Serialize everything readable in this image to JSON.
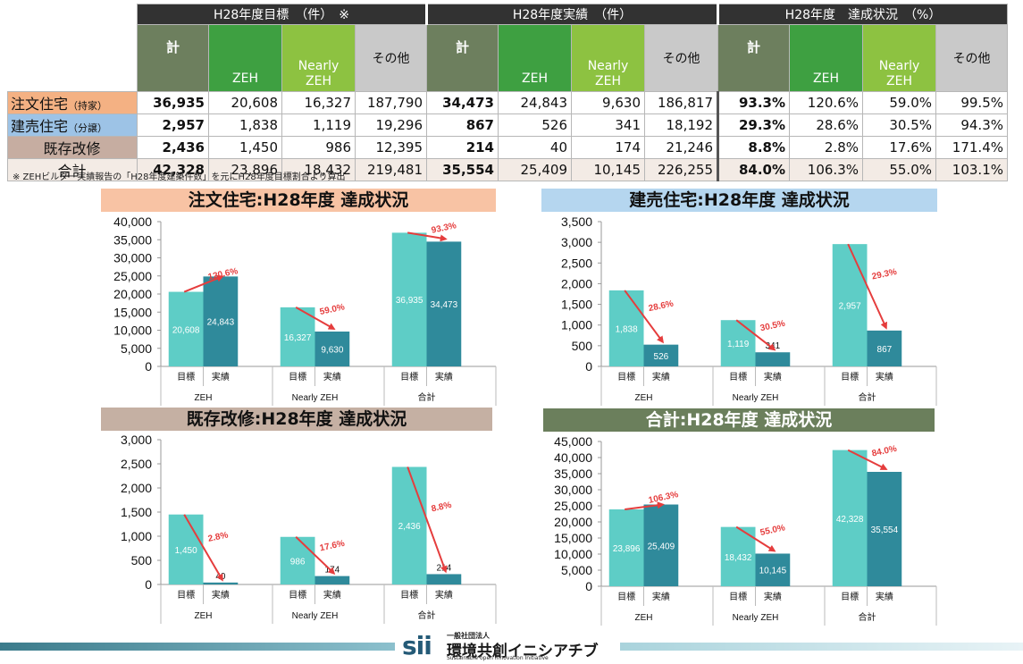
{
  "table": {
    "groups": [
      "H28年度目標　（件）　※",
      "H28年度実績　（件）",
      "H28年度　達成状況　（%）"
    ],
    "cols": [
      "計",
      "ZEH",
      "Nearly ZEH",
      "その他"
    ],
    "rows": [
      {
        "label": "注文住宅",
        "sub": "（持家）",
        "target": [
          "36,935",
          "20,608",
          "16,327",
          "187,790"
        ],
        "actual": [
          "34,473",
          "24,843",
          "9,630",
          "186,817"
        ],
        "rate": [
          "93.3%",
          "120.6%",
          "59.0%",
          "99.5%"
        ]
      },
      {
        "label": "建売住宅",
        "sub": "（分譲）",
        "target": [
          "2,957",
          "1,838",
          "1,119",
          "19,296"
        ],
        "actual": [
          "867",
          "526",
          "341",
          "18,192"
        ],
        "rate": [
          "29.3%",
          "28.6%",
          "30.5%",
          "94.3%"
        ]
      },
      {
        "label": "既存改修",
        "sub": "",
        "target": [
          "2,436",
          "1,450",
          "986",
          "12,395"
        ],
        "actual": [
          "214",
          "40",
          "174",
          "21,246"
        ],
        "rate": [
          "8.8%",
          "2.8%",
          "17.6%",
          "171.4%"
        ]
      },
      {
        "label": "合計",
        "sub": "",
        "target": [
          "42,328",
          "23,896",
          "18,432",
          "219,481"
        ],
        "actual": [
          "35,554",
          "25,409",
          "10,145",
          "226,255"
        ],
        "rate": [
          "84.0%",
          "106.3%",
          "55.0%",
          "103.1%"
        ]
      }
    ],
    "note": "※ ZEHビルダー実績報告の「H28年度建築件数」を元にH28年度目標割合より算出"
  },
  "colors": {
    "target_bar": "#5ecdc6",
    "actual_bar": "#2f8a9b",
    "arrow": "#e53d3d",
    "title_order": "#f8c3a4",
    "title_built": "#b5d6ef",
    "title_renov": "#c5b0a3",
    "title_total": "#6b7f5c"
  },
  "footer": {
    "logo": "sii",
    "org_small": "一般社団法人",
    "org_name": "環境共創イニシアチブ",
    "org_en": "Sustainable open Innovation Initiative"
  },
  "chart_data": [
    {
      "type": "bar",
      "title": "注文住宅:H28年度 達成状況",
      "categories": [
        "ZEH",
        "Nearly ZEH",
        "合計"
      ],
      "sub_categories": [
        "目標",
        "実績"
      ],
      "series": [
        {
          "name": "目標",
          "values": [
            20608,
            16327,
            36935
          ]
        },
        {
          "name": "実績",
          "values": [
            24843,
            9630,
            34473
          ]
        }
      ],
      "rates": [
        "120.6%",
        "59.0%",
        "93.3%"
      ],
      "ylim": [
        0,
        40000
      ],
      "ytick_step": 5000,
      "grid": false
    },
    {
      "type": "bar",
      "title": "建売住宅:H28年度 達成状況",
      "categories": [
        "ZEH",
        "Nearly ZEH",
        "合計"
      ],
      "sub_categories": [
        "目標",
        "実績"
      ],
      "series": [
        {
          "name": "目標",
          "values": [
            1838,
            1119,
            2957
          ]
        },
        {
          "name": "実績",
          "values": [
            526,
            341,
            867
          ]
        }
      ],
      "rates": [
        "28.6%",
        "30.5%",
        "29.3%"
      ],
      "ylim": [
        0,
        3500
      ],
      "ytick_step": 500,
      "grid": false
    },
    {
      "type": "bar",
      "title": "既存改修:H28年度 達成状況",
      "categories": [
        "ZEH",
        "Nearly ZEH",
        "合計"
      ],
      "sub_categories": [
        "目標",
        "実績"
      ],
      "series": [
        {
          "name": "目標",
          "values": [
            1450,
            986,
            2436
          ]
        },
        {
          "name": "実績",
          "values": [
            40,
            174,
            214
          ]
        }
      ],
      "rates": [
        "2.8%",
        "17.6%",
        "8.8%"
      ],
      "ylim": [
        0,
        3000
      ],
      "ytick_step": 500,
      "grid": false
    },
    {
      "type": "bar",
      "title": "合計:H28年度 達成状況",
      "categories": [
        "ZEH",
        "Nearly ZEH",
        "合計"
      ],
      "sub_categories": [
        "目標",
        "実績"
      ],
      "series": [
        {
          "name": "目標",
          "values": [
            23896,
            18432,
            42328
          ]
        },
        {
          "name": "実績",
          "values": [
            25409,
            10145,
            35554
          ]
        }
      ],
      "rates": [
        "106.3%",
        "55.0%",
        "84.0%"
      ],
      "ylim": [
        0,
        45000
      ],
      "ytick_step": 5000,
      "grid": false
    }
  ]
}
